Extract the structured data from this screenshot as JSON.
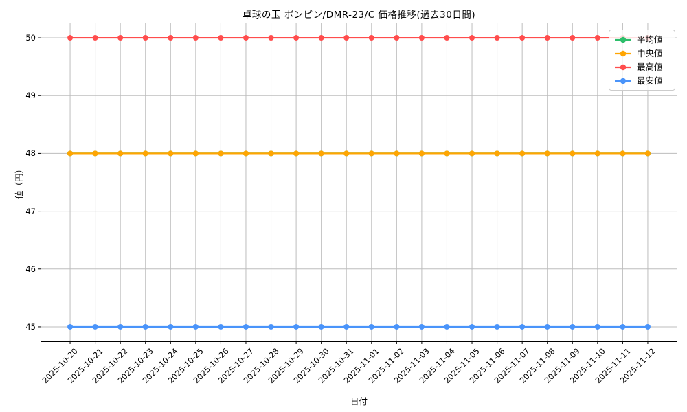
{
  "chart_data": {
    "type": "line",
    "title": "卓球の玉 ポンピン/DMR-23/C 価格推移(過去30日間)",
    "xlabel": "日付",
    "ylabel": "値（円）",
    "x": [
      "2025-10-20",
      "2025-10-21",
      "2025-10-22",
      "2025-10-23",
      "2025-10-24",
      "2025-10-25",
      "2025-10-26",
      "2025-10-27",
      "2025-10-28",
      "2025-10-29",
      "2025-10-30",
      "2025-10-31",
      "2025-11-01",
      "2025-11-02",
      "2025-11-03",
      "2025-11-04",
      "2025-11-05",
      "2025-11-06",
      "2025-11-07",
      "2025-11-08",
      "2025-11-09",
      "2025-11-10",
      "2025-11-11",
      "2025-11-12"
    ],
    "series": [
      {
        "id": "average",
        "name": "平均値",
        "color": "#2dbe6b",
        "values": [
          48,
          48,
          48,
          48,
          48,
          48,
          48,
          48,
          48,
          48,
          48,
          48,
          48,
          48,
          48,
          48,
          48,
          48,
          48,
          48,
          48,
          48,
          48,
          48
        ]
      },
      {
        "id": "median",
        "name": "中央値",
        "color": "#ffa502",
        "values": [
          48,
          48,
          48,
          48,
          48,
          48,
          48,
          48,
          48,
          48,
          48,
          48,
          48,
          48,
          48,
          48,
          48,
          48,
          48,
          48,
          48,
          48,
          48,
          48
        ]
      },
      {
        "id": "max",
        "name": "最高値",
        "color": "#ff4d4d",
        "values": [
          50,
          50,
          50,
          50,
          50,
          50,
          50,
          50,
          50,
          50,
          50,
          50,
          50,
          50,
          50,
          50,
          50,
          50,
          50,
          50,
          50,
          50,
          50,
          50
        ]
      },
      {
        "id": "min",
        "name": "最安値",
        "color": "#4a94fa",
        "values": [
          45,
          45,
          45,
          45,
          45,
          45,
          45,
          45,
          45,
          45,
          45,
          45,
          45,
          45,
          45,
          45,
          45,
          45,
          45,
          45,
          45,
          45,
          45,
          45
        ]
      }
    ],
    "yticks": [
      45,
      46,
      47,
      48,
      49,
      50
    ],
    "ylim": [
      44.75,
      50.25
    ],
    "grid": true,
    "grid_color": "#bdbdbd",
    "legend_position": "upper right"
  }
}
